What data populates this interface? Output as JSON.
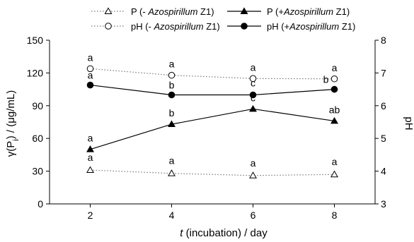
{
  "chart_data": {
    "type": "line",
    "x": [
      2,
      4,
      6,
      8
    ],
    "xlabel_italic": "t",
    "xlabel_rest": " (incubation) / day",
    "ylabel_left": "γ(P",
    "ylabel_left_sub": "i",
    "ylabel_left_rest": ") / (μg/mL)",
    "ylabel_right": "pH",
    "ylim_left": [
      0,
      150
    ],
    "ylim_right": [
      3,
      8
    ],
    "left_ticks": [
      0,
      30,
      60,
      90,
      120,
      150
    ],
    "right_ticks": [
      3,
      4,
      5,
      6,
      7,
      8
    ],
    "x_ticks": [
      2,
      4,
      6,
      8
    ],
    "grid": false,
    "legend_placement": "top",
    "series": [
      {
        "name_prefix": "P (- ",
        "name_italic": "Azospirillum",
        "name_suffix": " Z1)",
        "axis": "left",
        "values": [
          31,
          28,
          26,
          27
        ],
        "labels": [
          "a",
          "a",
          "a",
          "a"
        ],
        "marker": "open-triangle",
        "line": "dotted"
      },
      {
        "name_prefix": "P (+",
        "name_italic": "Azospirillum",
        "name_suffix": " Z1)",
        "axis": "left",
        "values": [
          50,
          73,
          87,
          76
        ],
        "labels": [
          "a",
          "b",
          "c",
          "ab"
        ],
        "marker": "filled-triangle",
        "line": "solid"
      },
      {
        "name_prefix": "pH (- ",
        "name_italic": "Azospirillum",
        "name_suffix": " Z1)",
        "axis": "right",
        "values": [
          7.13,
          6.93,
          6.83,
          6.82
        ],
        "labels": [
          "a",
          "a",
          "a",
          "a"
        ],
        "marker": "open-circle",
        "line": "dotted"
      },
      {
        "name_prefix": "pH (+",
        "name_italic": "Azospirillum",
        "name_suffix": " Z1)",
        "axis": "right",
        "values": [
          6.63,
          6.33,
          6.33,
          6.5
        ],
        "labels": [
          "a",
          "b",
          "c",
          "b"
        ],
        "marker": "filled-circle",
        "line": "solid"
      }
    ]
  }
}
